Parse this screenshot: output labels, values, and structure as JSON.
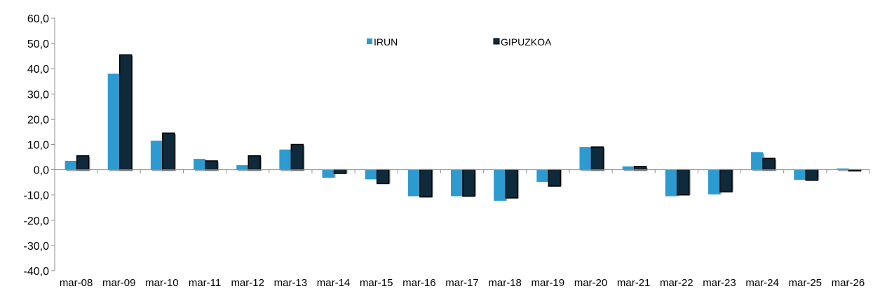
{
  "chart_data": {
    "type": "bar",
    "title": "",
    "xlabel": "",
    "ylabel": "",
    "ylim": [
      -40,
      60
    ],
    "yticks": [
      -40,
      -30,
      -20,
      -10,
      0,
      10,
      20,
      30,
      40,
      50,
      60
    ],
    "ytick_labels": [
      "-40,0",
      "-30,0",
      "-20,0",
      "-10,0",
      "0,0",
      "10,0",
      "20,0",
      "30,0",
      "40,0",
      "50,0",
      "60,0"
    ],
    "categories": [
      "mar-08",
      "mar-09",
      "mar-10",
      "mar-11",
      "mar-12",
      "mar-13",
      "mar-14",
      "mar-15",
      "mar-16",
      "mar-17",
      "mar-18",
      "mar-19",
      "mar-20",
      "mar-21",
      "mar-22",
      "mar-23",
      "mar-24",
      "mar-25",
      "mar-26"
    ],
    "grid": false,
    "legend_position": "top-center",
    "series": [
      {
        "name": "IRUN",
        "color": "#2e9bd0",
        "values": [
          3.5,
          38.0,
          11.5,
          4.3,
          1.8,
          8.0,
          -3.2,
          -3.8,
          -10.5,
          -10.5,
          -12.3,
          -4.8,
          9.0,
          1.3,
          -10.5,
          -9.8,
          7.0,
          -4.0,
          0.5
        ]
      },
      {
        "name": "GIPUZKOA",
        "color": "#0e2a3b",
        "values": [
          5.5,
          45.5,
          14.5,
          3.5,
          5.5,
          10.0,
          -1.5,
          -5.5,
          -10.8,
          -10.5,
          -11.2,
          -6.5,
          9.0,
          1.3,
          -10.0,
          -8.8,
          4.5,
          -4.2,
          -0.5
        ]
      }
    ]
  }
}
